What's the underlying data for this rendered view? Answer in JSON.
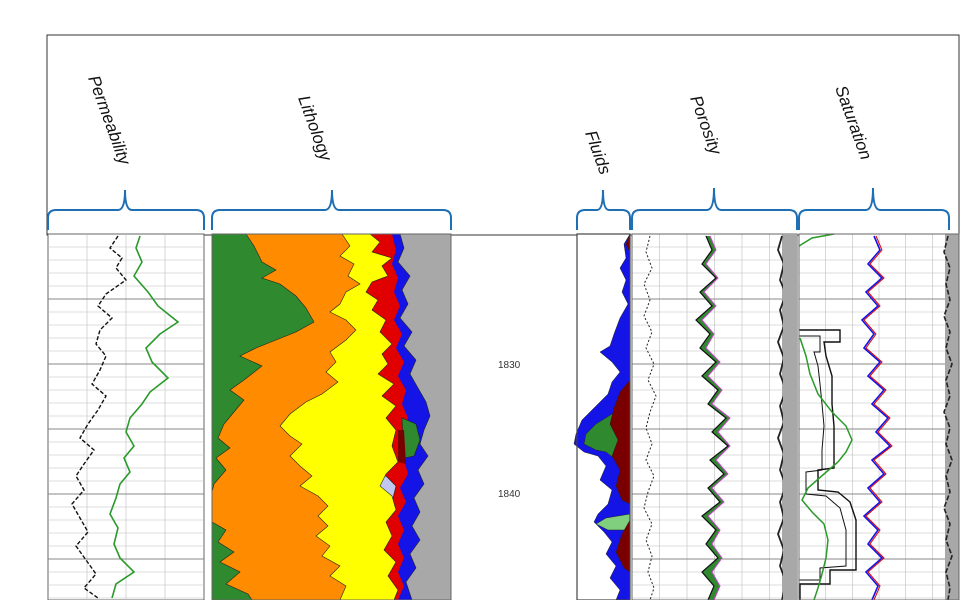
{
  "tracks": [
    {
      "key": "permeability",
      "label": "Permeability"
    },
    {
      "key": "lithology",
      "label": "Lithology"
    },
    {
      "key": "fluids",
      "label": "Fluids"
    },
    {
      "key": "porosity",
      "label": "Porosity"
    },
    {
      "key": "saturation",
      "label": "Saturation"
    }
  ],
  "depth_labels": [
    "1830",
    "1840"
  ],
  "colors": {
    "green": "#2f8a2f",
    "orange": "#ff8c00",
    "yellow": "#ffff00",
    "blue": "#1414e6",
    "dark_red": "#7a0000",
    "gray": "#a8a8a8",
    "bracket": "#1f6fb5",
    "curve_green": "#2a9a2a"
  }
}
